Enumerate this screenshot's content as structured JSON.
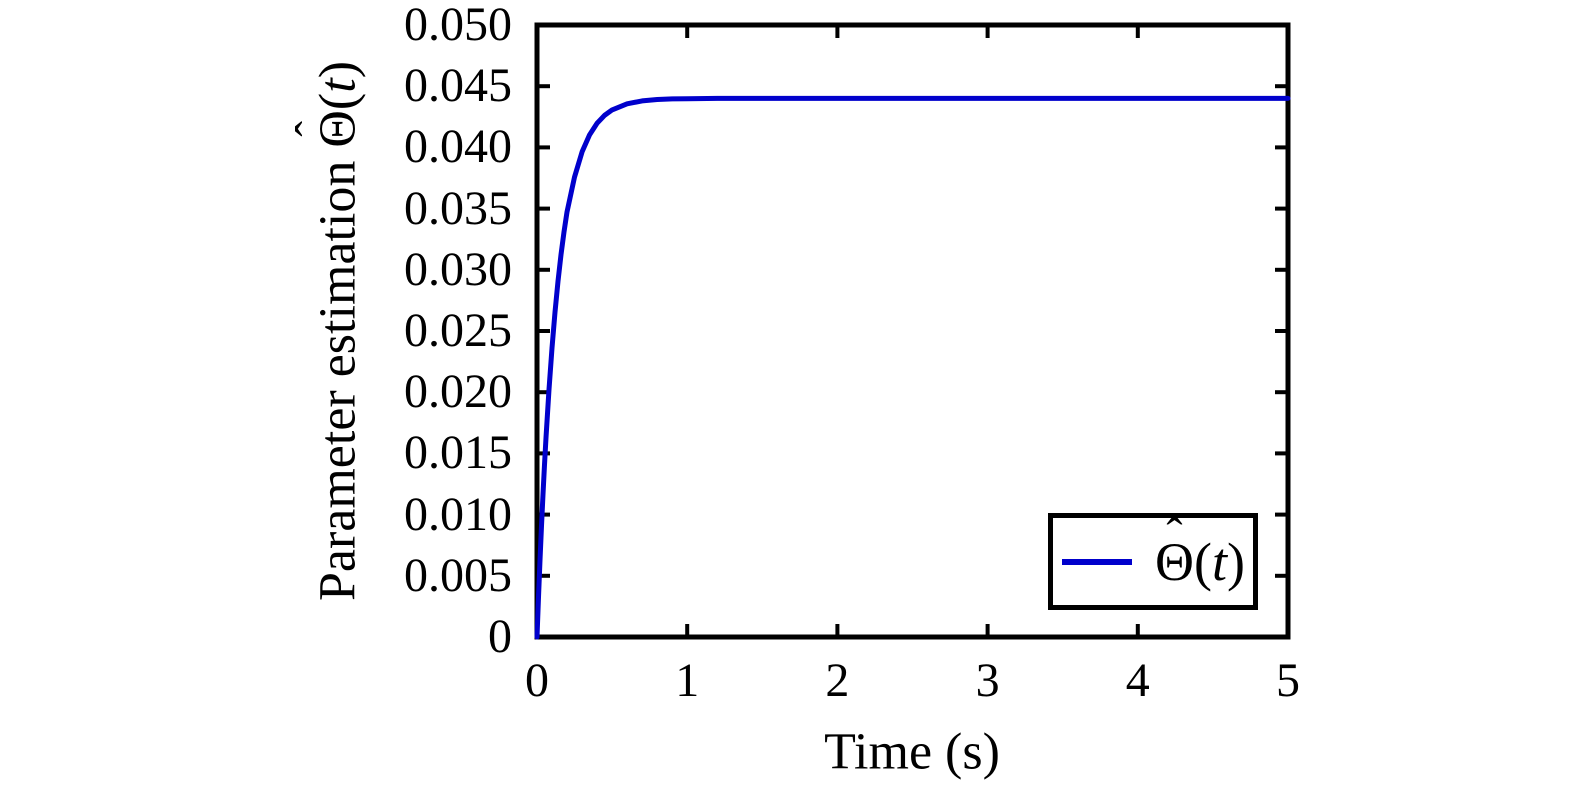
{
  "figure": {
    "background_color": "#ffffff",
    "axis_color": "#000000",
    "accent_color": "#0000cc"
  },
  "axes": {
    "xlabel": "Time (s)",
    "ylabel_prefix": "Parameter estimation",
    "x_tick_labels": [
      "0",
      "1",
      "2",
      "3",
      "4",
      "5"
    ],
    "y_tick_labels": [
      "0",
      "0.005",
      "0.010",
      "0.015",
      "0.020",
      "0.025",
      "0.030",
      "0.035",
      "0.040",
      "0.045",
      "0.050"
    ]
  },
  "symbols": {
    "theta": "Θ",
    "hat": "ˆ",
    "open_paren": "(",
    "t_var": "t",
    "close_paren": ")"
  },
  "legend": {
    "entry_name": "Θ̂(t)",
    "line_color": "#0000cc",
    "border_color": "#000000",
    "position": "lower right"
  },
  "chart_data": {
    "type": "line",
    "title": "",
    "xlabel": "Time (s)",
    "ylabel": "Parameter estimation Θ̂(t)",
    "xlim": [
      0,
      5
    ],
    "ylim": [
      0,
      0.05
    ],
    "x_tick_values": [
      0,
      1,
      2,
      3,
      4,
      5
    ],
    "y_tick_values": [
      0,
      0.005,
      0.01,
      0.015,
      0.02,
      0.025,
      0.03,
      0.035,
      0.04,
      0.045,
      0.05
    ],
    "grid": false,
    "legend_position": "lower right",
    "steady_state_value": 0.044,
    "series": [
      {
        "name": "Θ̂(t)",
        "color": "#0000cc",
        "x": [
          0,
          0.01,
          0.02,
          0.03,
          0.04,
          0.05,
          0.06,
          0.08,
          0.1,
          0.12,
          0.14,
          0.16,
          0.18,
          0.2,
          0.25,
          0.3,
          0.35,
          0.4,
          0.45,
          0.5,
          0.6,
          0.7,
          0.8,
          0.9,
          1.0,
          1.2,
          1.5,
          2.0,
          2.5,
          3.0,
          3.5,
          4.0,
          4.5,
          5.0
        ],
        "y": [
          0,
          0.00326,
          0.00628,
          0.00908,
          0.01167,
          0.01407,
          0.01629,
          0.02022,
          0.02361,
          0.02654,
          0.02906,
          0.03123,
          0.0331,
          0.03472,
          0.03757,
          0.03964,
          0.04103,
          0.04198,
          0.04262,
          0.04306,
          0.04356,
          0.0438,
          0.04391,
          0.04396,
          0.04398,
          0.044,
          0.044,
          0.044,
          0.044,
          0.044,
          0.044,
          0.044,
          0.044,
          0.044
        ]
      }
    ]
  }
}
